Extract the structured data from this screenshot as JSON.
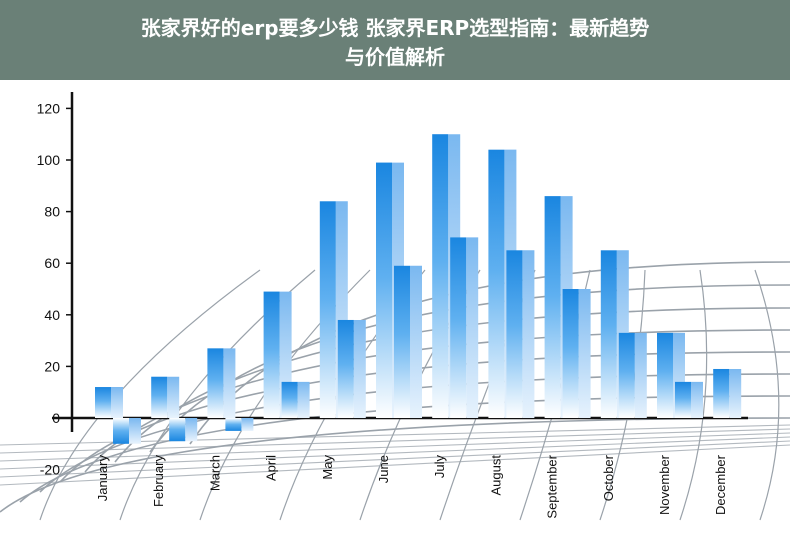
{
  "title": {
    "line1": "张家界好的erp要多少钱 张家界ERP选型指南：最新趋势",
    "line2": "与价值解析"
  },
  "colors": {
    "overlay": "#556e64",
    "bar_dark": "#1e90e8",
    "bar_light": "#ffffff",
    "bar_side": "#8cc3f2",
    "grid": "#9aa2aa",
    "axis": "#111111"
  },
  "chart_data": {
    "type": "bar",
    "style": "3d-clustered-column",
    "title": "",
    "xlabel": "",
    "ylabel": "",
    "ylim": [
      -20,
      120
    ],
    "y_ticks": [
      -20,
      0,
      20,
      40,
      60,
      80,
      100,
      120
    ],
    "grid": true,
    "legend": "none",
    "categories": [
      "January",
      "February",
      "March",
      "April",
      "May",
      "June",
      "July",
      "August",
      "September",
      "October",
      "November",
      "December"
    ],
    "series": [
      {
        "values": [
          12,
          16,
          27,
          49,
          84,
          99,
          110,
          104,
          86,
          65,
          33,
          19
        ]
      },
      {
        "values": [
          -10,
          -9,
          -5,
          14,
          38,
          59,
          70,
          65,
          50,
          33,
          14,
          null
        ]
      }
    ]
  }
}
